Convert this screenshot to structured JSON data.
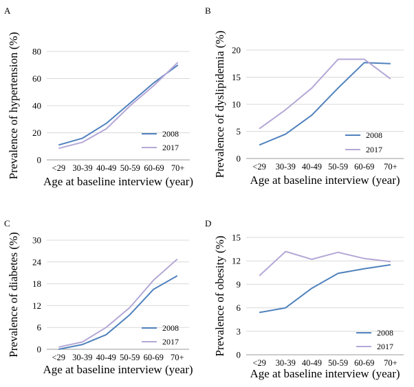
{
  "chart_data": [
    {
      "panel_label": "A",
      "type": "line",
      "categories": [
        "<29",
        "30-39",
        "40-49",
        "50-59",
        "60-69",
        "70+"
      ],
      "xlabel": "Age at baseline interview (year)",
      "ylabel": "Prevalence of hypertension (%)",
      "ylim": [
        0,
        80
      ],
      "yticks": [
        0,
        20,
        40,
        60,
        80
      ],
      "grid": "horizontal",
      "legend_position": "bottom-right",
      "series": [
        {
          "name": "2008",
          "color": "#4f81bd",
          "values": [
            11,
            16,
            27,
            42,
            57,
            70
          ]
        },
        {
          "name": "2017",
          "color": "#b4a7d6",
          "values": [
            8.5,
            13,
            23,
            40,
            55,
            72
          ]
        }
      ]
    },
    {
      "panel_label": "B",
      "type": "line",
      "categories": [
        "<29",
        "30-39",
        "40-49",
        "50-59",
        "60-69",
        "70+"
      ],
      "xlabel": "Age at baseline interview (year)",
      "ylabel": "Prevalence of dyslipidemia (%)",
      "ylim": [
        0,
        20
      ],
      "yticks": [
        0,
        5,
        10,
        15,
        20
      ],
      "grid": "horizontal",
      "legend_position": "bottom-right",
      "series": [
        {
          "name": "2008",
          "color": "#4f81bd",
          "values": [
            2.5,
            4.5,
            8,
            13,
            17.7,
            17.5
          ]
        },
        {
          "name": "2017",
          "color": "#b4a7d6",
          "values": [
            5.5,
            9,
            13,
            18.3,
            18.3,
            14.7
          ]
        }
      ]
    },
    {
      "panel_label": "C",
      "type": "line",
      "categories": [
        "<29",
        "30-39",
        "40-49",
        "50-59",
        "60-69",
        "70+"
      ],
      "xlabel": "Age at baseline interview (year)",
      "ylabel": "Prevalence of diabetes (%)",
      "ylim": [
        0,
        30
      ],
      "yticks": [
        0,
        6,
        12,
        18,
        24,
        30
      ],
      "grid": "horizontal",
      "legend_position": "bottom-right",
      "series": [
        {
          "name": "2008",
          "color": "#4f81bd",
          "values": [
            0,
            1.3,
            4,
            9.5,
            16.5,
            20.2
          ]
        },
        {
          "name": "2017",
          "color": "#b4a7d6",
          "values": [
            0.6,
            2,
            6,
            11.5,
            19,
            24.8
          ]
        }
      ]
    },
    {
      "panel_label": "D",
      "type": "line",
      "categories": [
        "<29",
        "30-39",
        "40-49",
        "50-59",
        "60-69",
        "70+"
      ],
      "xlabel": "Age at baseline interview (year)",
      "ylabel": "Prevalence of obesity (%)",
      "ylim": [
        0,
        15
      ],
      "yticks": [
        0,
        3,
        6,
        9,
        12,
        15
      ],
      "grid": "horizontal",
      "legend_position": "bottom-right",
      "series": [
        {
          "name": "2008",
          "color": "#4f81bd",
          "values": [
            5.4,
            6,
            8.5,
            10.4,
            11,
            11.5
          ]
        },
        {
          "name": "2017",
          "color": "#b4a7d6",
          "values": [
            10.1,
            13.2,
            12.2,
            13.1,
            12.3,
            11.9
          ]
        }
      ]
    }
  ]
}
